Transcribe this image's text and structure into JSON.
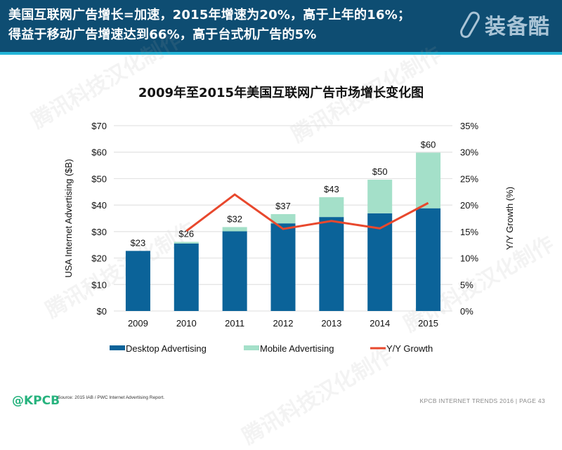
{
  "header": {
    "title_line1": "美国互联网广告增长=加速，2015年增速为20%，高于上年的16%；",
    "title_line2": "得益于移动广告增速达到66%，高于台式机广告的5%",
    "brand": "装备酷",
    "brand_icon": "carabiner-icon"
  },
  "watermark": "腾讯科技汉化制作",
  "colors": {
    "header_bg": "#0e4d72",
    "header_stripe": "#23b5d8",
    "desktop": "#0b6399",
    "mobile": "#a4e0c9",
    "growth": "#e8482d",
    "kpcb": "#27b37e"
  },
  "chart_data": {
    "type": "bar",
    "stacked": true,
    "title": "2009年至2015年美国互联网广告市场增长变化图",
    "categories": [
      "2009",
      "2010",
      "2011",
      "2012",
      "2013",
      "2014",
      "2015"
    ],
    "series": [
      {
        "name": "Desktop Advertising",
        "type": "bar",
        "axis": "left",
        "values": [
          22.7,
          25.5,
          30.1,
          33.1,
          35.5,
          36.9,
          38.8
        ]
      },
      {
        "name": "Mobile Advertising",
        "type": "bar",
        "axis": "left",
        "values": [
          0.0,
          0.6,
          1.6,
          3.5,
          7.5,
          12.7,
          21.0
        ]
      },
      {
        "name": "Y/Y Growth",
        "type": "line",
        "axis": "right",
        "values": [
          null,
          15.1,
          22.0,
          15.5,
          17.0,
          15.6,
          20.4
        ]
      }
    ],
    "totals_labels": [
      "$23",
      "$26",
      "$32",
      "$37",
      "$43",
      "$50",
      "$60"
    ],
    "ylabel": "USA Internet Advertising ($B)",
    "ylabel_right": "Y/Y Growth (%)",
    "xlabel": "",
    "ylim": [
      0,
      70
    ],
    "ylim_right": [
      0,
      35
    ],
    "yticks": [
      "$0",
      "$10",
      "$20",
      "$30",
      "$40",
      "$50",
      "$60",
      "$70"
    ],
    "yticks_right": [
      "0%",
      "5%",
      "10%",
      "15%",
      "20%",
      "25%",
      "30%",
      "35%"
    ],
    "grid": true,
    "legend_position": "bottom"
  },
  "footer": {
    "logo": "@KPCB",
    "source": "Source: 2015 IAB / PWC Internet Advertising Report.",
    "right": "KPCB INTERNET TRENDS 2016  |  PAGE 43"
  }
}
